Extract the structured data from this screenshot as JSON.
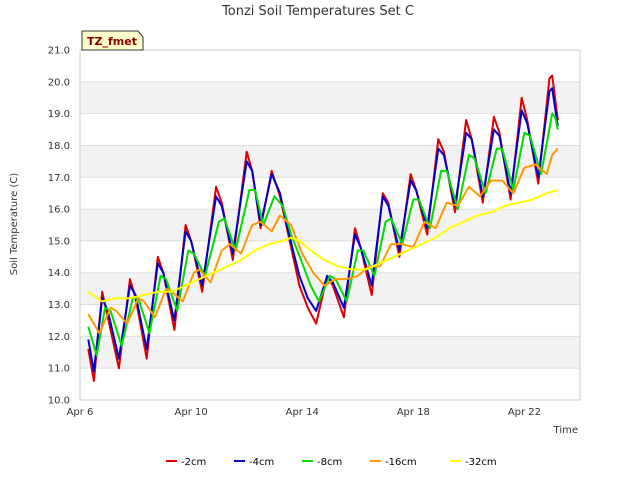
{
  "chart_data": {
    "type": "line",
    "title": "Tonzi Soil Temperatures Set C",
    "xlabel": "Time",
    "ylabel": "Soil Temperature (C)",
    "ylim": [
      10.0,
      21.0
    ],
    "xlim": [
      "Apr 6",
      "Apr 24"
    ],
    "y_ticks": [
      "10.0",
      "11.0",
      "12.0",
      "13.0",
      "14.0",
      "15.0",
      "16.0",
      "17.0",
      "18.0",
      "19.0",
      "20.0",
      "21.0"
    ],
    "x_ticks": [
      "Apr 6",
      "Apr 10",
      "Apr 14",
      "Apr 18",
      "Apr 22"
    ],
    "grid": "horizontal bands",
    "legend_position": "bottom",
    "site_badge": "TZ_fmet",
    "series": [
      {
        "name": "-2cm",
        "color": "#dd0000",
        "values": [
          [
            6.3,
            11.6
          ],
          [
            6.5,
            10.6
          ],
          [
            6.8,
            13.4
          ],
          [
            7.0,
            12.6
          ],
          [
            7.4,
            11.0
          ],
          [
            7.8,
            13.8
          ],
          [
            8.0,
            13.2
          ],
          [
            8.4,
            11.3
          ],
          [
            8.8,
            14.5
          ],
          [
            9.0,
            14.0
          ],
          [
            9.4,
            12.2
          ],
          [
            9.8,
            15.5
          ],
          [
            10.0,
            15.0
          ],
          [
            10.4,
            13.4
          ],
          [
            10.9,
            16.7
          ],
          [
            11.1,
            16.2
          ],
          [
            11.5,
            14.4
          ],
          [
            12.0,
            17.8
          ],
          [
            12.2,
            17.2
          ],
          [
            12.5,
            15.4
          ],
          [
            12.9,
            17.2
          ],
          [
            13.2,
            16.4
          ],
          [
            13.5,
            15.2
          ],
          [
            13.9,
            13.6
          ],
          [
            14.2,
            12.9
          ],
          [
            14.5,
            12.4
          ],
          [
            14.9,
            13.9
          ],
          [
            15.1,
            13.6
          ],
          [
            15.5,
            12.6
          ],
          [
            15.9,
            15.4
          ],
          [
            16.1,
            14.8
          ],
          [
            16.5,
            13.3
          ],
          [
            16.9,
            16.5
          ],
          [
            17.1,
            16.2
          ],
          [
            17.5,
            14.5
          ],
          [
            17.9,
            17.1
          ],
          [
            18.1,
            16.6
          ],
          [
            18.5,
            15.2
          ],
          [
            18.9,
            18.2
          ],
          [
            19.1,
            17.8
          ],
          [
            19.5,
            15.9
          ],
          [
            19.9,
            18.8
          ],
          [
            20.1,
            18.2
          ],
          [
            20.5,
            16.2
          ],
          [
            20.9,
            18.9
          ],
          [
            21.1,
            18.4
          ],
          [
            21.5,
            16.3
          ],
          [
            21.9,
            19.5
          ],
          [
            22.1,
            18.8
          ],
          [
            22.5,
            16.8
          ],
          [
            22.9,
            20.1
          ],
          [
            23.0,
            20.2
          ],
          [
            23.2,
            18.8
          ]
        ]
      },
      {
        "name": "-4cm",
        "color": "#0000cc",
        "values": [
          [
            6.3,
            11.9
          ],
          [
            6.5,
            10.9
          ],
          [
            6.8,
            13.2
          ],
          [
            7.0,
            12.8
          ],
          [
            7.4,
            11.3
          ],
          [
            7.8,
            13.6
          ],
          [
            8.0,
            13.3
          ],
          [
            8.4,
            11.6
          ],
          [
            8.8,
            14.3
          ],
          [
            9.0,
            14.0
          ],
          [
            9.4,
            12.5
          ],
          [
            9.8,
            15.3
          ],
          [
            10.0,
            15.0
          ],
          [
            10.4,
            13.6
          ],
          [
            10.9,
            16.4
          ],
          [
            11.1,
            16.1
          ],
          [
            11.5,
            14.6
          ],
          [
            12.0,
            17.5
          ],
          [
            12.2,
            17.2
          ],
          [
            12.5,
            15.5
          ],
          [
            12.9,
            17.1
          ],
          [
            13.2,
            16.5
          ],
          [
            13.5,
            15.3
          ],
          [
            13.9,
            13.9
          ],
          [
            14.2,
            13.2
          ],
          [
            14.5,
            12.8
          ],
          [
            14.9,
            13.9
          ],
          [
            15.1,
            13.7
          ],
          [
            15.5,
            12.9
          ],
          [
            15.9,
            15.2
          ],
          [
            16.1,
            14.8
          ],
          [
            16.5,
            13.6
          ],
          [
            16.9,
            16.4
          ],
          [
            17.1,
            16.1
          ],
          [
            17.5,
            14.7
          ],
          [
            17.9,
            16.9
          ],
          [
            18.1,
            16.6
          ],
          [
            18.5,
            15.4
          ],
          [
            18.9,
            17.9
          ],
          [
            19.1,
            17.7
          ],
          [
            19.5,
            16.1
          ],
          [
            19.9,
            18.4
          ],
          [
            20.1,
            18.2
          ],
          [
            20.5,
            16.4
          ],
          [
            20.9,
            18.5
          ],
          [
            21.1,
            18.3
          ],
          [
            21.5,
            16.5
          ],
          [
            21.9,
            19.1
          ],
          [
            22.1,
            18.7
          ],
          [
            22.5,
            17.0
          ],
          [
            22.9,
            19.7
          ],
          [
            23.0,
            19.8
          ],
          [
            23.2,
            18.6
          ]
        ]
      },
      {
        "name": "-8cm",
        "color": "#00dd00",
        "values": [
          [
            6.3,
            12.3
          ],
          [
            6.6,
            11.4
          ],
          [
            6.9,
            12.9
          ],
          [
            7.1,
            12.8
          ],
          [
            7.5,
            11.7
          ],
          [
            7.9,
            13.2
          ],
          [
            8.1,
            13.2
          ],
          [
            8.5,
            12.1
          ],
          [
            8.9,
            13.9
          ],
          [
            9.1,
            13.8
          ],
          [
            9.5,
            12.8
          ],
          [
            9.9,
            14.7
          ],
          [
            10.1,
            14.6
          ],
          [
            10.5,
            13.9
          ],
          [
            11.0,
            15.6
          ],
          [
            11.2,
            15.7
          ],
          [
            11.6,
            14.7
          ],
          [
            12.1,
            16.6
          ],
          [
            12.3,
            16.6
          ],
          [
            12.6,
            15.5
          ],
          [
            13.0,
            16.4
          ],
          [
            13.3,
            16.1
          ],
          [
            13.6,
            15.2
          ],
          [
            14.0,
            14.3
          ],
          [
            14.3,
            13.6
          ],
          [
            14.6,
            13.1
          ],
          [
            15.0,
            13.9
          ],
          [
            15.2,
            13.8
          ],
          [
            15.6,
            13.1
          ],
          [
            16.0,
            14.7
          ],
          [
            16.2,
            14.7
          ],
          [
            16.6,
            13.9
          ],
          [
            17.0,
            15.6
          ],
          [
            17.2,
            15.7
          ],
          [
            17.6,
            14.9
          ],
          [
            18.0,
            16.3
          ],
          [
            18.2,
            16.3
          ],
          [
            18.6,
            15.4
          ],
          [
            19.0,
            17.2
          ],
          [
            19.2,
            17.2
          ],
          [
            19.6,
            16.0
          ],
          [
            20.0,
            17.7
          ],
          [
            20.2,
            17.6
          ],
          [
            20.6,
            16.5
          ],
          [
            21.0,
            17.9
          ],
          [
            21.2,
            17.9
          ],
          [
            21.6,
            16.6
          ],
          [
            22.0,
            18.4
          ],
          [
            22.2,
            18.3
          ],
          [
            22.6,
            17.1
          ],
          [
            23.0,
            19.0
          ],
          [
            23.1,
            18.9
          ],
          [
            23.2,
            18.5
          ]
        ]
      },
      {
        "name": "-16cm",
        "color": "#ff9900",
        "values": [
          [
            6.3,
            12.7
          ],
          [
            6.7,
            12.1
          ],
          [
            7.1,
            12.9
          ],
          [
            7.3,
            12.8
          ],
          [
            7.7,
            12.4
          ],
          [
            8.1,
            13.2
          ],
          [
            8.3,
            13.1
          ],
          [
            8.7,
            12.6
          ],
          [
            9.1,
            13.5
          ],
          [
            9.3,
            13.4
          ],
          [
            9.7,
            13.1
          ],
          [
            10.1,
            14.0
          ],
          [
            10.3,
            14.1
          ],
          [
            10.7,
            13.7
          ],
          [
            11.1,
            14.7
          ],
          [
            11.4,
            14.9
          ],
          [
            11.8,
            14.6
          ],
          [
            12.2,
            15.5
          ],
          [
            12.5,
            15.6
          ],
          [
            12.9,
            15.3
          ],
          [
            13.2,
            15.8
          ],
          [
            13.6,
            15.5
          ],
          [
            14.0,
            14.6
          ],
          [
            14.4,
            14.0
          ],
          [
            14.8,
            13.6
          ],
          [
            15.2,
            13.8
          ],
          [
            15.6,
            13.8
          ],
          [
            16.0,
            13.9
          ],
          [
            16.4,
            14.2
          ],
          [
            16.8,
            14.2
          ],
          [
            17.2,
            14.9
          ],
          [
            17.6,
            14.9
          ],
          [
            18.0,
            14.8
          ],
          [
            18.4,
            15.6
          ],
          [
            18.8,
            15.4
          ],
          [
            19.2,
            16.2
          ],
          [
            19.6,
            16.1
          ],
          [
            20.0,
            16.7
          ],
          [
            20.4,
            16.4
          ],
          [
            20.8,
            16.9
          ],
          [
            21.2,
            16.9
          ],
          [
            21.6,
            16.5
          ],
          [
            22.0,
            17.3
          ],
          [
            22.4,
            17.4
          ],
          [
            22.8,
            17.1
          ],
          [
            23.0,
            17.7
          ],
          [
            23.2,
            17.9
          ]
        ]
      },
      {
        "name": "-32cm",
        "color": "#ffff00",
        "values": [
          [
            6.3,
            13.4
          ],
          [
            6.8,
            13.1
          ],
          [
            7.3,
            13.2
          ],
          [
            7.8,
            13.2
          ],
          [
            8.3,
            13.3
          ],
          [
            8.8,
            13.4
          ],
          [
            9.3,
            13.4
          ],
          [
            9.8,
            13.6
          ],
          [
            10.3,
            13.8
          ],
          [
            10.8,
            14.0
          ],
          [
            11.3,
            14.2
          ],
          [
            11.8,
            14.4
          ],
          [
            12.3,
            14.7
          ],
          [
            12.8,
            14.9
          ],
          [
            13.3,
            15.0
          ],
          [
            13.6,
            15.1
          ],
          [
            13.9,
            15.0
          ],
          [
            14.3,
            14.7
          ],
          [
            14.8,
            14.4
          ],
          [
            15.3,
            14.2
          ],
          [
            15.8,
            14.1
          ],
          [
            16.3,
            14.1
          ],
          [
            16.8,
            14.3
          ],
          [
            17.3,
            14.5
          ],
          [
            17.8,
            14.7
          ],
          [
            18.3,
            14.9
          ],
          [
            18.8,
            15.1
          ],
          [
            19.3,
            15.4
          ],
          [
            19.8,
            15.6
          ],
          [
            20.3,
            15.8
          ],
          [
            20.8,
            15.9
          ],
          [
            21.3,
            16.1
          ],
          [
            21.8,
            16.2
          ],
          [
            22.3,
            16.3
          ],
          [
            22.8,
            16.5
          ],
          [
            23.2,
            16.6
          ]
        ]
      }
    ]
  }
}
